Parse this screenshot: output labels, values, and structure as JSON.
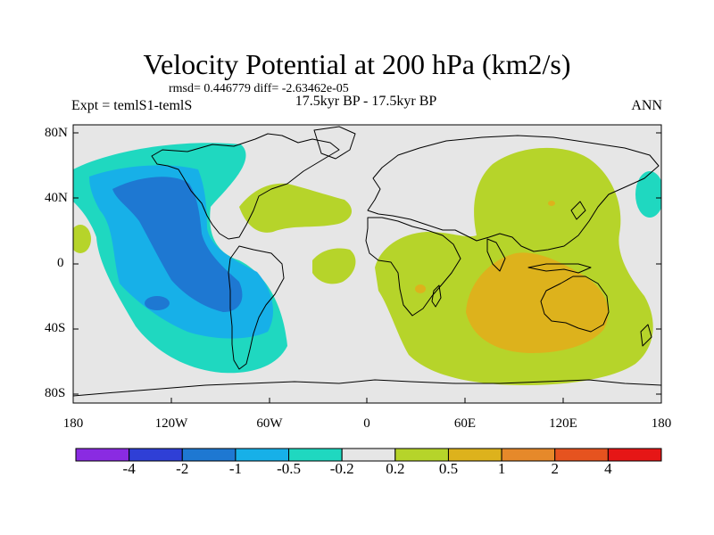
{
  "title": "Velocity Potential at 200 hPa (km2/s)",
  "stats": "rmsd= 0.446779 diff= -2.63462e-05",
  "period": "17.5kyr BP - 17.5kyr BP",
  "experiment": "Expt = temlS1-temlS",
  "season": "ANN",
  "lat_labels": [
    "80N",
    "40N",
    "0",
    "40S",
    "80S"
  ],
  "lon_labels": [
    "180",
    "120W",
    "60W",
    "0",
    "60E",
    "120E",
    "180"
  ],
  "colorbar": {
    "labels": [
      "-4",
      "-2",
      "-1",
      "-0.5",
      "-0.2",
      "0.2",
      "0.5",
      "1",
      "2",
      "4"
    ],
    "colors": [
      "#8a2be2",
      "#2f3fd6",
      "#1e78d2",
      "#17b0e8",
      "#1fd8c0",
      "#e6e6e6",
      "#b6d42a",
      "#ddb21c",
      "#e6892a",
      "#e6531f",
      "#e61616"
    ]
  },
  "fill_colors": {
    "background": "#e6e6e6",
    "neg_weak": "#1fd8c0",
    "neg_mid": "#17b0e8",
    "neg_strong": "#1e78d2",
    "pos_weak": "#b6d42a",
    "pos_mid": "#ddb21c"
  }
}
